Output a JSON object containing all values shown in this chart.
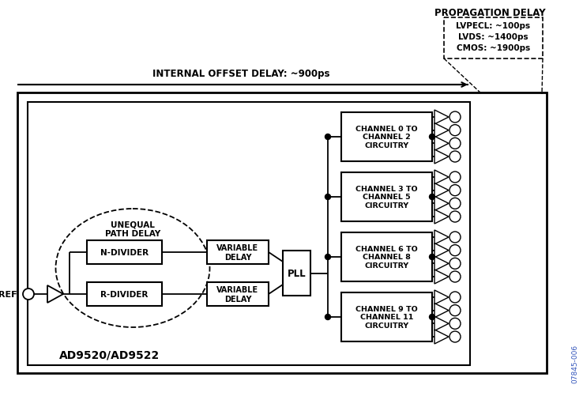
{
  "bg_color": "#ffffff",
  "text_color": "#000000",
  "fig_width": 7.38,
  "fig_height": 5.02,
  "dpi": 100,
  "propagation_delay_text": "PROPAGATION DELAY",
  "propagation_lines": [
    "LVPECL: ~100ps",
    "LVDS: ~1400ps",
    "CMOS: ~1900ps"
  ],
  "internal_offset_text": "INTERNAL OFFSET DELAY: ~900ps",
  "channel_labels": [
    "CHANNEL 0 TO\nCHANNEL 2\nCIRCUITRY",
    "CHANNEL 3 TO\nCHANNEL 5\nCIRCUITRY",
    "CHANNEL 6 TO\nCHANNEL 8\nCIRCUITRY",
    "CHANNEL 9 TO\nCHANNEL 11\nCIRCUITRY"
  ],
  "ad_label": "AD9520/AD9522",
  "watermark": "07845-006"
}
